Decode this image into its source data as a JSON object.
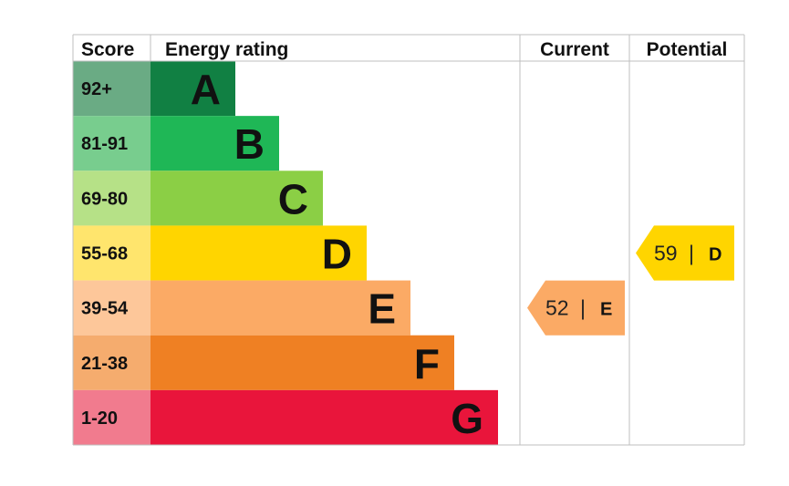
{
  "chart_data": {
    "type": "table",
    "headers": {
      "score": "Score",
      "energy_rating": "Energy rating",
      "current": "Current",
      "potential": "Potential"
    },
    "bands": [
      {
        "score": "92+",
        "letter": "A",
        "color": "#118043",
        "score_bg": "#6aab84"
      },
      {
        "score": "81-91",
        "letter": "B",
        "color": "#1fb756",
        "score_bg": "#78cd8e"
      },
      {
        "score": "69-80",
        "letter": "C",
        "color": "#8bcf45",
        "score_bg": "#b6e187"
      },
      {
        "score": "55-68",
        "letter": "D",
        "color": "#ffd500",
        "score_bg": "#ffe56d"
      },
      {
        "score": "39-54",
        "letter": "E",
        "color": "#fbaa65",
        "score_bg": "#fdc79a"
      },
      {
        "score": "21-38",
        "letter": "F",
        "color": "#ef8023",
        "score_bg": "#f5ac6e"
      },
      {
        "score": "1-20",
        "letter": "G",
        "color": "#e9153b",
        "score_bg": "#f17b8e"
      }
    ],
    "current": {
      "value": 52,
      "letter": "E",
      "color": "#fbaa65"
    },
    "potential": {
      "value": 59,
      "letter": "D",
      "color": "#ffd500"
    }
  },
  "colors": {
    "grid": "#bfbfbf",
    "text": "#000000",
    "background": "#ffffff"
  }
}
